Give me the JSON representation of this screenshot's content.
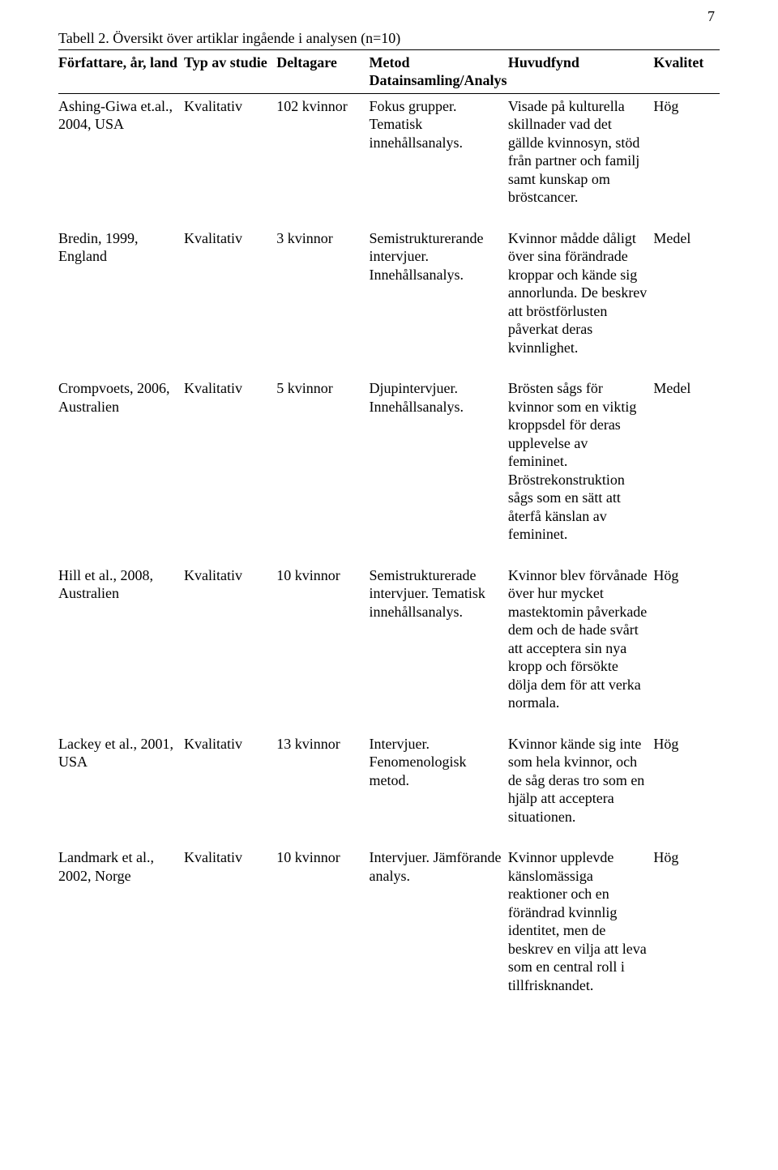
{
  "pageNumber": "7",
  "caption": "Tabell 2. Översikt över artiklar ingående i analysen (n=10)",
  "table": {
    "columns": [
      "Författare, år, land",
      "Typ av studie",
      "Deltagare",
      "Metod Datainsamling/Analys",
      "Huvudfynd",
      "Kvalitet"
    ],
    "rows": [
      {
        "author": "Ashing-Giwa et.al., 2004, USA",
        "type": "Kvalitativ",
        "participants": "102 kvinnor",
        "method": "Fokus grupper. Tematisk innehållsanalys.",
        "findings": "Visade på kulturella skillnader vad det gällde kvinnosyn, stöd från partner och familj samt kunskap om bröstcancer.",
        "quality": "Hög"
      },
      {
        "author": "Bredin, 1999, England",
        "type": "Kvalitativ",
        "participants": "3 kvinnor",
        "method": "Semistrukturerande intervjuer. Innehållsanalys.",
        "findings": "Kvinnor mådde dåligt över sina förändrade kroppar och kände sig annorlunda. De beskrev att bröstförlusten påverkat deras kvinnlighet.",
        "quality": "Medel"
      },
      {
        "author": "Crompvoets, 2006, Australien",
        "type": "Kvalitativ",
        "participants": "5 kvinnor",
        "method": "Djupintervjuer. Innehållsanalys.",
        "findings": "Brösten sågs för kvinnor som en viktig kroppsdel för deras upplevelse av femininet. Bröstrekonstruktion sågs som en sätt att återfå känslan av femininet.",
        "quality": "Medel"
      },
      {
        "author": "Hill et al., 2008, Australien",
        "type": "Kvalitativ",
        "participants": "10 kvinnor",
        "method": "Semistrukturerade intervjuer. Tematisk innehållsanalys.",
        "findings": "Kvinnor blev förvånade över hur mycket mastektomin påverkade dem och de hade svårt att acceptera sin nya kropp och försökte dölja dem för att verka normala.",
        "quality": "Hög"
      },
      {
        "author": "Lackey et al., 2001, USA",
        "type": "Kvalitativ",
        "participants": "13 kvinnor",
        "method": "Intervjuer. Fenomenologisk metod.",
        "findings": "Kvinnor kände sig inte som hela kvinnor, och de såg deras tro som en hjälp att acceptera situationen.",
        "quality": "Hög"
      },
      {
        "author": "Landmark et al., 2002, Norge",
        "type": "Kvalitativ",
        "participants": "10 kvinnor",
        "method": "Intervjuer. Jämförande analys.",
        "findings": "Kvinnor upplevde känslomässiga reaktioner och en förändrad kvinnlig identitet, men de beskrev en vilja att leva som en central roll i tillfrisknandet.",
        "quality": "Hög"
      }
    ]
  }
}
